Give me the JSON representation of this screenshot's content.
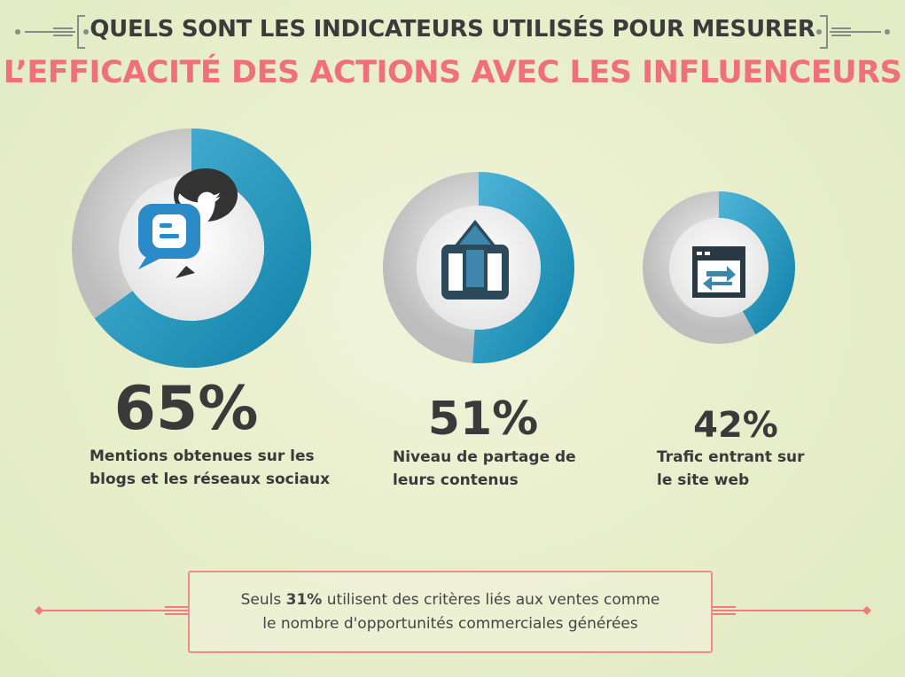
{
  "title": {
    "line1": "QUELS SONT LES INDICATEURS UTILISÉS POUR MESURER",
    "line2": "L’EFFICACITÉ DES ACTIONS AVEC LES INFLUENCEURS"
  },
  "colors": {
    "accent_pink": "#f0707a",
    "ring_blue": "#1e8fb8",
    "ring_gray": "#c8c8c8",
    "text_dark": "#3a3a3a"
  },
  "chart_data": {
    "type": "pie",
    "series": [
      {
        "value": 65,
        "pct_label": "65%",
        "label_line1": "Mentions obtenues sur les",
        "label_line2": "blogs et les réseaux sociaux",
        "icon": "blogger-twitter-icon"
      },
      {
        "value": 51,
        "pct_label": "51%",
        "label_line1": "Niveau de partage de",
        "label_line2": "leurs contenus",
        "icon": "share-upload-icon"
      },
      {
        "value": 42,
        "pct_label": "42%",
        "label_line1": "Trafic entrant sur",
        "label_line2": "le site web",
        "icon": "web-traffic-icon"
      }
    ]
  },
  "note": {
    "prefix": "Seuls ",
    "highlight": "31%",
    "suffix": " utilisent des critères liés aux ventes comme",
    "line2": "le nombre d'opportunités commerciales générées"
  }
}
